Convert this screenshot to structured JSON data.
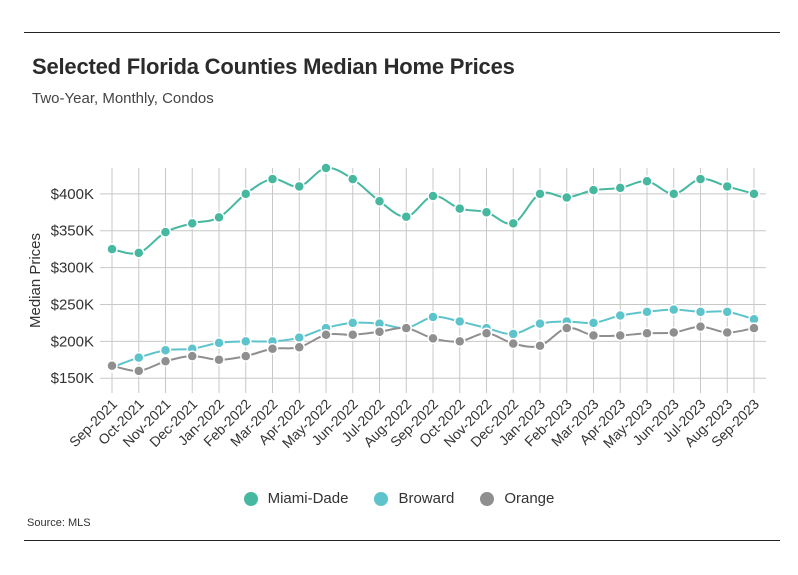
{
  "title": "Selected Florida Counties Median Home Prices",
  "subtitle": "Two-Year, Monthly, Condos",
  "source": "Source: MLS",
  "chart_data": {
    "type": "line",
    "title": "Selected Florida Counties Median Home Prices",
    "subtitle": "Two-Year, Monthly, Condos",
    "ylabel": "Median Prices",
    "xlabel": "",
    "ylim": [
      130000,
      435000
    ],
    "yticks": [
      150000,
      200000,
      250000,
      300000,
      350000,
      400000
    ],
    "ytick_labels": [
      "$150K",
      "$200K",
      "$250K",
      "$300K",
      "$350K",
      "$400K"
    ],
    "grid": true,
    "legend_position": "bottom-center",
    "categories": [
      "Sep-2021",
      "Oct-2021",
      "Nov-2021",
      "Dec-2021",
      "Jan-2022",
      "Feb-2022",
      "Mar-2022",
      "Apr-2022",
      "May-2022",
      "Jun-2022",
      "Jul-2022",
      "Aug-2022",
      "Sep-2022",
      "Oct-2022",
      "Nov-2022",
      "Dec-2022",
      "Jan-2023",
      "Feb-2023",
      "Mar-2023",
      "Apr-2023",
      "May-2023",
      "Jun-2023",
      "Jul-2023",
      "Aug-2023",
      "Sep-2023"
    ],
    "series": [
      {
        "name": "Miami-Dade",
        "color": "#46b8a0",
        "values": [
          325000,
          320000,
          348000,
          360000,
          368000,
          400000,
          420000,
          410000,
          435000,
          420000,
          390000,
          369000,
          397000,
          380000,
          375000,
          360000,
          400000,
          395000,
          405000,
          408000,
          417000,
          400000,
          420000,
          410000,
          400000
        ]
      },
      {
        "name": "Broward",
        "color": "#5ec4cc",
        "values": [
          165000,
          178000,
          188000,
          190000,
          198000,
          200000,
          200000,
          205000,
          218000,
          225000,
          224000,
          218000,
          233000,
          227000,
          218000,
          210000,
          224000,
          227000,
          225000,
          235000,
          240000,
          243000,
          240000,
          240000,
          230000
        ]
      },
      {
        "name": "Orange",
        "color": "#8f8f8f",
        "values": [
          167000,
          160000,
          173000,
          180000,
          175000,
          180000,
          190000,
          192000,
          209000,
          209000,
          213000,
          218000,
          204000,
          200000,
          211000,
          197000,
          194000,
          218000,
          208000,
          208000,
          211000,
          212000,
          220000,
          212000,
          218000
        ]
      }
    ]
  }
}
